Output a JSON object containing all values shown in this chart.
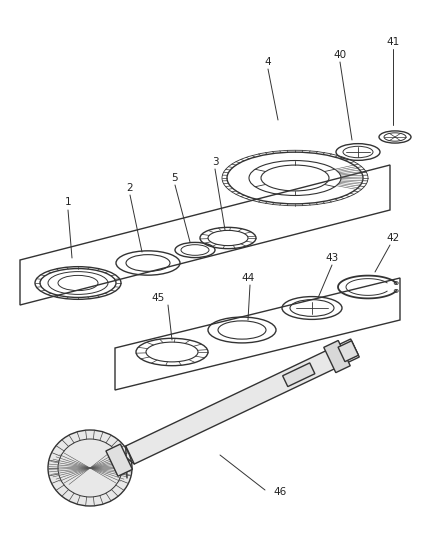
{
  "background_color": "#ffffff",
  "line_color": "#333333",
  "label_color": "#222222",
  "figsize": [
    4.39,
    5.33
  ],
  "dpi": 100,
  "label_fontsize": 7.5
}
